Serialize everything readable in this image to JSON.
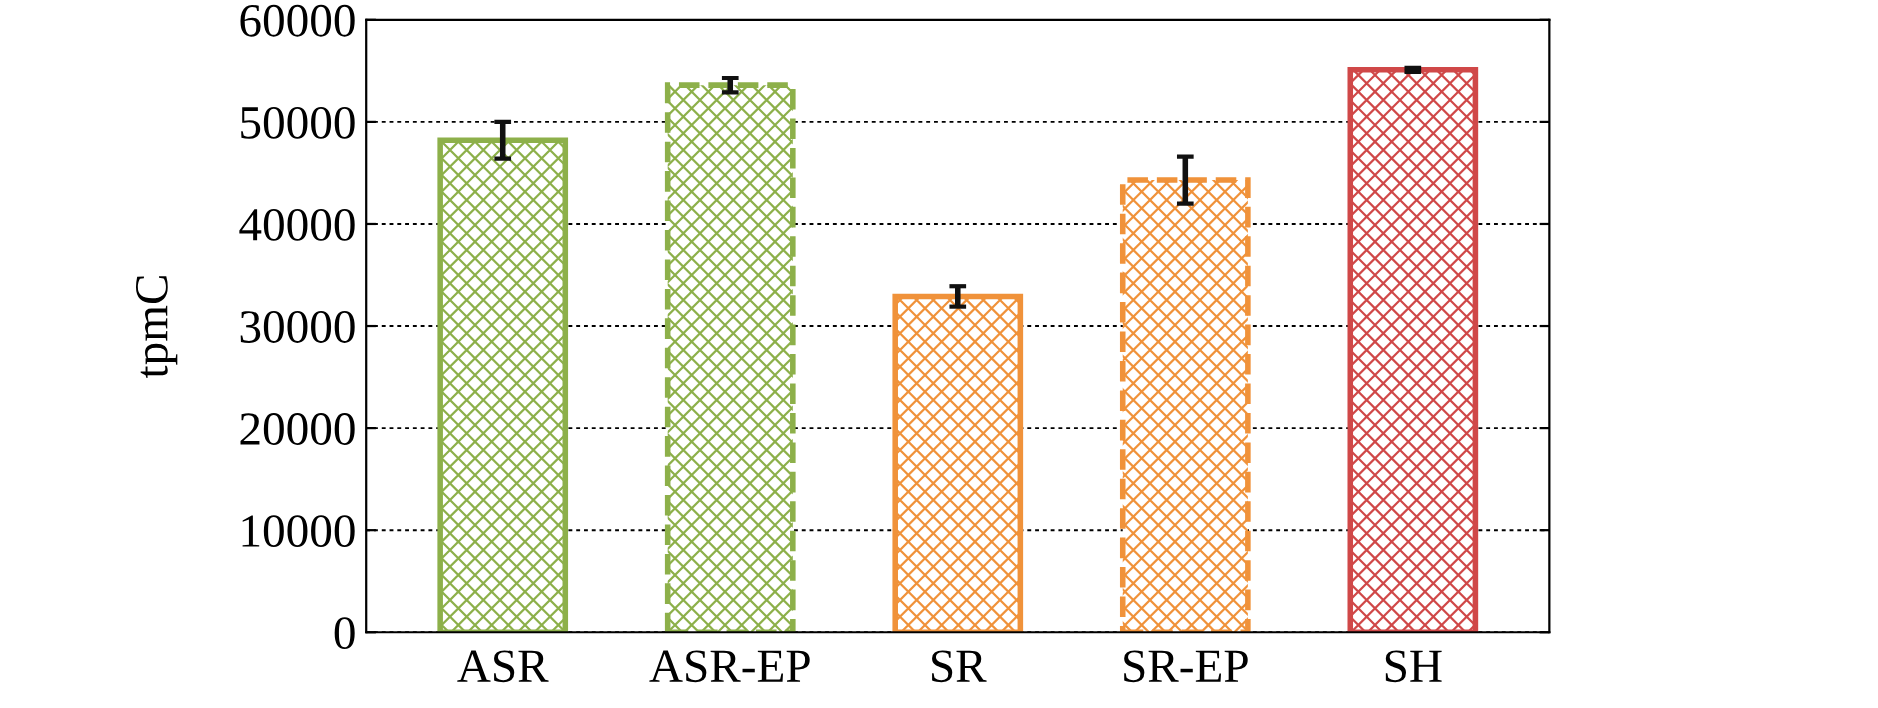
{
  "chart_data": {
    "type": "bar",
    "ylabel": "tpmC",
    "categories": [
      "ASR",
      "ASR-EP",
      "SR",
      "SR-EP",
      "SH"
    ],
    "series": [
      {
        "colors": [
          "#8db04a",
          null,
          "#f0923a",
          null,
          "#d04848"
        ],
        "line_style": "solid",
        "values": [
          48200,
          null,
          32900,
          null,
          55100
        ],
        "errors": [
          1800,
          null,
          1000,
          null,
          200
        ]
      },
      {
        "colors": [
          null,
          "#8db04a",
          null,
          "#f0923a",
          null
        ],
        "line_style": "dashed",
        "values": [
          null,
          53600,
          null,
          44300,
          null
        ],
        "errors": [
          null,
          700,
          null,
          2300,
          null
        ]
      }
    ],
    "ylim": [
      0,
      60000
    ],
    "yticks": [
      0,
      10000,
      20000,
      30000,
      40000,
      50000,
      60000
    ],
    "grid": "y"
  }
}
